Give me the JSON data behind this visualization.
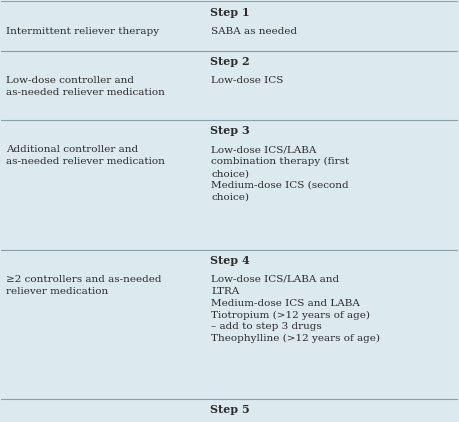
{
  "bg_color": "#dce9ef",
  "text_color": "#2b2b2b",
  "font_size": 7.5,
  "bold_size": 8.0,
  "rows": [
    {
      "type": "step",
      "label": "Step 1"
    },
    {
      "type": "data",
      "left": "Intermittent reliever therapy",
      "right": "SABA as needed"
    },
    {
      "type": "step",
      "label": "Step 2"
    },
    {
      "type": "data",
      "left": "Low-dose controller and\nas-needed reliever medication",
      "right": "Low-dose ICS"
    },
    {
      "type": "step",
      "label": "Step 3"
    },
    {
      "type": "data",
      "left": "Additional controller and\nas-needed reliever medication",
      "right": "Low-dose ICS/LABA\ncombination therapy (first\nchoice)\nMedium-dose ICS (second\nchoice)"
    },
    {
      "type": "step",
      "label": "Step 4"
    },
    {
      "type": "data",
      "left": "≥2 controllers and as-needed\nreliever medication",
      "right": "Low-dose ICS/LABA and\nLTRA\nMedium-dose ICS and LABA\nTiotropium (>12 years of age)\n– add to step 3 drugs\nTheophylline (>12 years of age)"
    },
    {
      "type": "step",
      "label": "Step 5"
    }
  ],
  "line_color": "#8a9fa8"
}
